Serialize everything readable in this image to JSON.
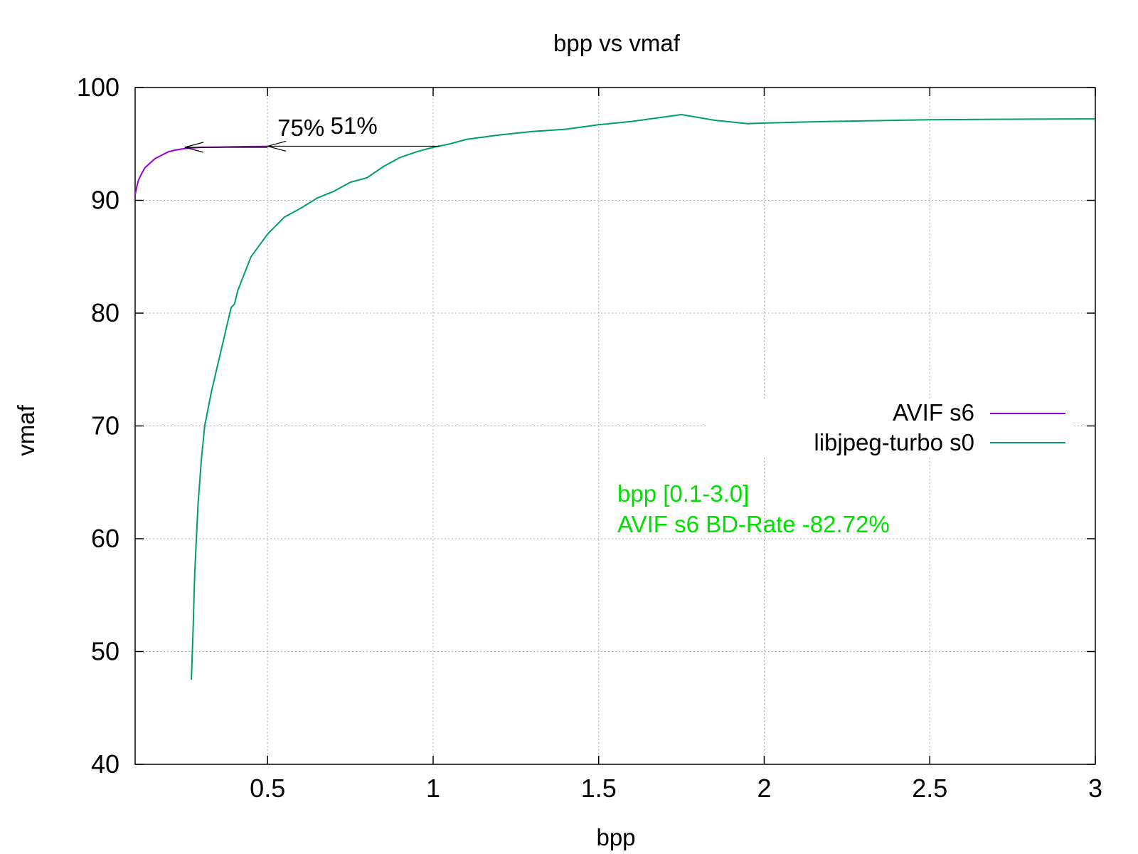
{
  "chart_data": {
    "type": "line",
    "title": "bpp vs vmaf",
    "xlabel": "bpp",
    "ylabel": "vmaf",
    "xlim": [
      0.1,
      3.0
    ],
    "ylim": [
      40,
      100
    ],
    "grid": true,
    "x_ticks": [
      0.5,
      1,
      1.5,
      2,
      2.5,
      3
    ],
    "y_ticks": [
      40,
      50,
      60,
      70,
      80,
      90,
      100
    ],
    "legend_position": "right-middle",
    "series": [
      {
        "name": "AVIF s6",
        "color": "#9400d3",
        "points": [
          [
            0.1,
            90.5
          ],
          [
            0.105,
            91.2
          ],
          [
            0.11,
            91.8
          ],
          [
            0.12,
            92.4
          ],
          [
            0.13,
            92.9
          ],
          [
            0.145,
            93.3
          ],
          [
            0.16,
            93.7
          ],
          [
            0.18,
            94.0
          ],
          [
            0.2,
            94.3
          ],
          [
            0.22,
            94.45
          ],
          [
            0.24,
            94.55
          ],
          [
            0.26,
            94.62
          ],
          [
            0.3,
            94.7
          ],
          [
            0.35,
            94.72
          ],
          [
            0.4,
            94.75
          ],
          [
            0.45,
            94.77
          ],
          [
            0.5,
            94.78
          ]
        ]
      },
      {
        "name": "libjpeg-turbo s0",
        "color": "#009e73",
        "points": [
          [
            0.27,
            47.5
          ],
          [
            0.275,
            52.0
          ],
          [
            0.28,
            57.0
          ],
          [
            0.285,
            60.0
          ],
          [
            0.29,
            63.0
          ],
          [
            0.3,
            67.0
          ],
          [
            0.31,
            70.0
          ],
          [
            0.33,
            73.0
          ],
          [
            0.35,
            75.5
          ],
          [
            0.37,
            78.0
          ],
          [
            0.39,
            80.5
          ],
          [
            0.4,
            80.8
          ],
          [
            0.41,
            82.0
          ],
          [
            0.43,
            83.5
          ],
          [
            0.45,
            85.0
          ],
          [
            0.48,
            86.2
          ],
          [
            0.5,
            87.0
          ],
          [
            0.55,
            88.5
          ],
          [
            0.6,
            89.3
          ],
          [
            0.65,
            90.2
          ],
          [
            0.7,
            90.8
          ],
          [
            0.75,
            91.6
          ],
          [
            0.8,
            92.0
          ],
          [
            0.85,
            93.0
          ],
          [
            0.9,
            93.8
          ],
          [
            0.95,
            94.3
          ],
          [
            1.0,
            94.7
          ],
          [
            1.05,
            95.0
          ],
          [
            1.1,
            95.4
          ],
          [
            1.2,
            95.8
          ],
          [
            1.3,
            96.1
          ],
          [
            1.4,
            96.3
          ],
          [
            1.5,
            96.7
          ],
          [
            1.6,
            97.0
          ],
          [
            1.7,
            97.4
          ],
          [
            1.75,
            97.6
          ],
          [
            1.85,
            97.1
          ],
          [
            1.95,
            96.8
          ],
          [
            2.0,
            96.85
          ],
          [
            2.2,
            97.0
          ],
          [
            2.5,
            97.15
          ],
          [
            2.8,
            97.2
          ],
          [
            3.0,
            97.22
          ]
        ]
      }
    ],
    "arrows": [
      {
        "from": [
          1.02,
          94.8
        ],
        "to": [
          0.5,
          94.8
        ]
      },
      {
        "from": [
          0.5,
          94.7
        ],
        "to": [
          0.25,
          94.7
        ]
      }
    ],
    "annotations": [
      {
        "text": "75%",
        "x": 0.53,
        "y": 95.7
      },
      {
        "text": "51%",
        "x": 0.69,
        "y": 95.9
      }
    ],
    "note": {
      "line1": "bpp [0.1-3.0]",
      "line2": "AVIF s6 BD-Rate -82.72%",
      "color": "#00e000"
    }
  }
}
